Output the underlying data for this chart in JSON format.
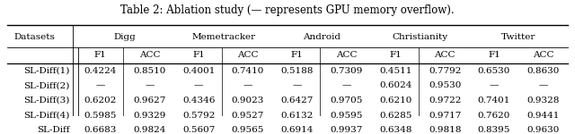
{
  "title": "Table 2: Ablation study (— represents GPU memory overflow).",
  "col_groups": [
    {
      "name": "Digg",
      "span": 2
    },
    {
      "name": "Memetracker",
      "span": 2
    },
    {
      "name": "Android",
      "span": 2
    },
    {
      "name": "Christianity",
      "span": 2
    },
    {
      "name": "Twitter",
      "span": 2
    }
  ],
  "sub_headers": [
    "F1",
    "ACC",
    "F1",
    "ACC",
    "F1",
    "ACC",
    "F1",
    "ACC",
    "F1",
    "ACC"
  ],
  "rows": [
    {
      "label": "SL-Diff(1)",
      "values": [
        "0.4224",
        "0.8510",
        "0.4001",
        "0.7410",
        "0.5188",
        "0.7309",
        "0.4511",
        "0.7792",
        "0.6530",
        "0.8630"
      ]
    },
    {
      "label": "SL-Diff(2)",
      "values": [
        "—",
        "—",
        "—",
        "—",
        "—",
        "—",
        "0.6024",
        "0.9530",
        "—",
        "—"
      ]
    },
    {
      "label": "SL-Diff(3)",
      "values": [
        "0.6202",
        "0.9627",
        "0.4346",
        "0.9023",
        "0.6427",
        "0.9705",
        "0.6210",
        "0.9722",
        "0.7401",
        "0.9328"
      ]
    },
    {
      "label": "SL-Diff(4)",
      "values": [
        "0.5985",
        "0.9329",
        "0.5792",
        "0.9527",
        "0.6132",
        "0.9595",
        "0.6285",
        "0.9717",
        "0.7620",
        "0.9441"
      ]
    },
    {
      "label": "SL-Diff",
      "values": [
        "0.6683",
        "0.9824",
        "0.5607",
        "0.9565",
        "0.6914",
        "0.9937",
        "0.6348",
        "0.9818",
        "0.8395",
        "0.9630"
      ]
    }
  ],
  "background_color": "#ffffff",
  "text_color": "#000000",
  "font_size": 7.5,
  "title_font_size": 8.5
}
